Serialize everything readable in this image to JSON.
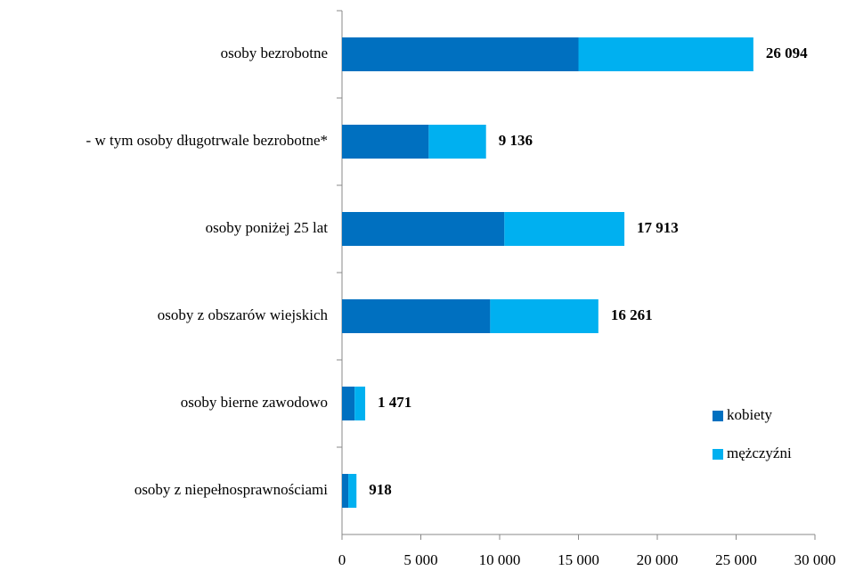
{
  "chart_data": {
    "type": "stacked-barh",
    "categories": [
      "osoby bezrobotne",
      "- w tym osoby długotrwale bezrobotne*",
      "osoby poniżej 25 lat",
      "osoby z obszarów wiejskich",
      "osoby bierne zawodowo",
      "osoby z niepełnosprawnościami"
    ],
    "series": [
      {
        "name": "kobiety",
        "color": "#0070c0",
        "values": [
          15000,
          5500,
          10300,
          9400,
          800,
          400
        ]
      },
      {
        "name": "mężczyźni",
        "color": "#00b0f0",
        "values": [
          11094,
          3636,
          7613,
          6861,
          671,
          518
        ]
      }
    ],
    "totals": [
      26094,
      9136,
      17913,
      16261,
      1471,
      918
    ],
    "total_labels": [
      "26 094",
      "9 136",
      "17 913",
      "16 261",
      "1 471",
      "918"
    ],
    "xlim": [
      0,
      30000
    ],
    "xticks": [
      0,
      {
        "value": 5000,
        "label": "5 000"
      },
      {
        "value": 10000,
        "label": "10 000"
      },
      {
        "value": 15000,
        "label": "15 000"
      },
      {
        "value": 20000,
        "label": "20 000"
      },
      {
        "value": 25000,
        "label": "25 000"
      },
      {
        "value": 30000,
        "label": "30 000"
      }
    ],
    "legend": "right"
  }
}
